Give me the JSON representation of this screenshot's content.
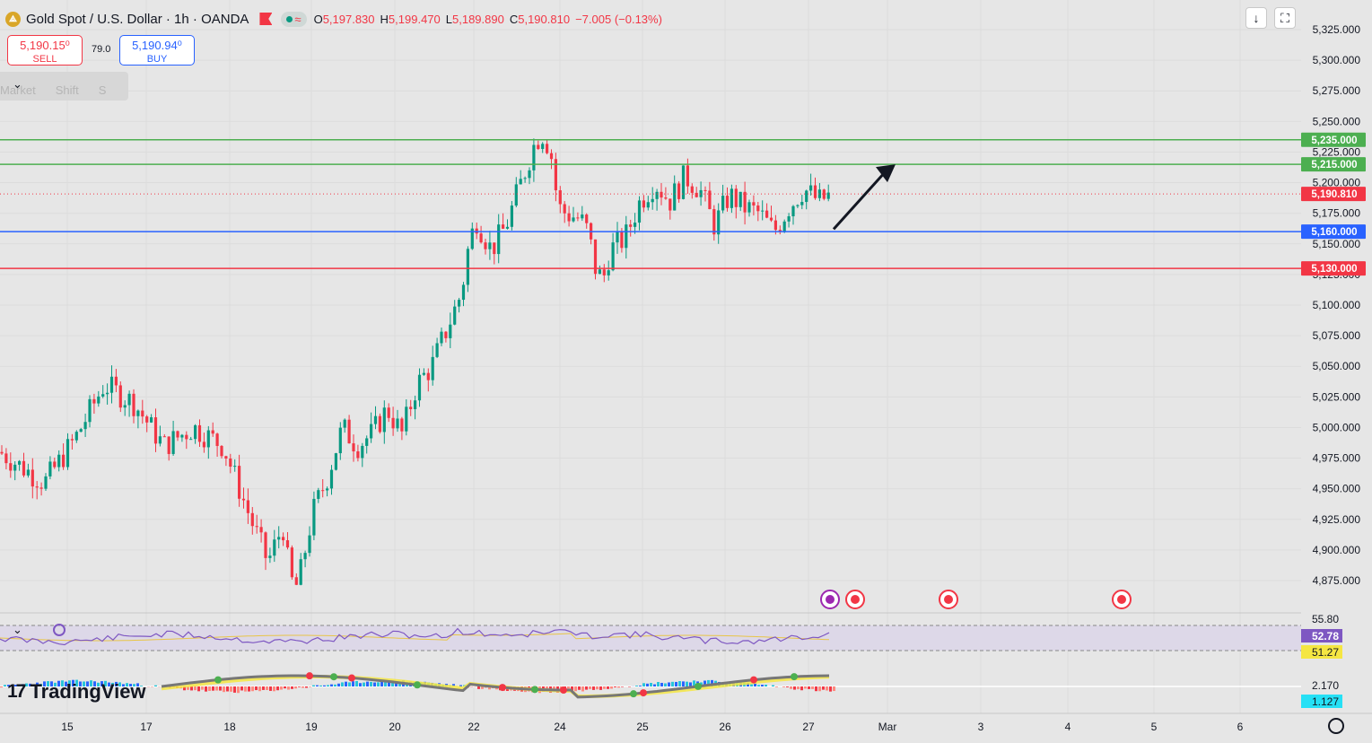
{
  "header": {
    "logo_glyph": "⟁",
    "symbol": "Gold Spot / U.S. Dollar · 1h · OANDA",
    "open_label": "O",
    "open": "5,197.830",
    "high_label": "H",
    "high": "5,199.470",
    "low_label": "L",
    "low": "5,189.890",
    "close_label": "C",
    "close": "5,190.810",
    "change": "−7.005 (−0.13%)",
    "indicator_glyph": "≈"
  },
  "trade": {
    "sell_price": "5,190.15⁰",
    "sell_label": "SELL",
    "spread": "79.0",
    "buy_price": "5,190.94⁰",
    "buy_label": "BUY"
  },
  "toolbar": {
    "download_glyph": "↓",
    "fullscreen_glyph": "⛶"
  },
  "overlay": {
    "items": [
      "Market",
      "Shift",
      "S"
    ],
    "chevron": "⌄"
  },
  "brand": {
    "mark": "17",
    "name": "TradingView"
  },
  "colors": {
    "up": "#089981",
    "down": "#f23645",
    "support": "#2962ff",
    "resistance": "#4caf50",
    "rsi": "#7e57c2",
    "rsi_ma": "#e8c547"
  },
  "chart_data": {
    "type": "candlestick",
    "timeframe": "1h",
    "ylim": [
      4850,
      5335
    ],
    "y_ticks": [
      "5,325.000",
      "5,300.000",
      "5,275.000",
      "5,250.000",
      "5,225.000",
      "5,200.000",
      "5,175.000",
      "5,150.000",
      "5,125.000",
      "5,100.000",
      "5,075.000",
      "5,050.000",
      "5,025.000",
      "5,000.000",
      "4,975.000",
      "4,950.000",
      "4,925.000",
      "4,900.000",
      "4,875.000"
    ],
    "x_ticks": [
      "15",
      "17",
      "18",
      "19",
      "20",
      "22",
      "24",
      "25",
      "26",
      "27",
      "Mar",
      "3",
      "4",
      "5",
      "6"
    ],
    "price_path": [
      [
        0,
        4980
      ],
      [
        3,
        4955
      ],
      [
        5,
        4990
      ],
      [
        7,
        5035
      ],
      [
        9,
        5020
      ],
      [
        11,
        4985
      ],
      [
        13,
        5000
      ],
      [
        15,
        4985
      ],
      [
        17,
        4920
      ],
      [
        18,
        4890
      ],
      [
        19,
        4920
      ],
      [
        19.5,
        4875
      ],
      [
        20,
        4870
      ],
      [
        20.5,
        4900
      ],
      [
        21,
        4930
      ],
      [
        22,
        4960
      ],
      [
        23,
        5000
      ],
      [
        24,
        4985
      ],
      [
        25,
        4995
      ],
      [
        26,
        5015
      ],
      [
        27,
        4995
      ],
      [
        28,
        5035
      ],
      [
        29,
        5050
      ],
      [
        30,
        5080
      ],
      [
        31,
        5110
      ],
      [
        31.5,
        5150
      ],
      [
        32,
        5170
      ],
      [
        33,
        5145
      ],
      [
        34,
        5165
      ],
      [
        35,
        5200
      ],
      [
        36,
        5235
      ],
      [
        36.5,
        5240
      ],
      [
        37,
        5225
      ],
      [
        37.5,
        5180
      ],
      [
        38,
        5175
      ],
      [
        39,
        5170
      ],
      [
        39.5,
        5160
      ],
      [
        40,
        5130
      ],
      [
        40.5,
        5120
      ],
      [
        41,
        5145
      ],
      [
        42,
        5155
      ],
      [
        43,
        5185
      ],
      [
        44,
        5200
      ],
      [
        45,
        5185
      ],
      [
        46,
        5205
      ],
      [
        47,
        5195
      ],
      [
        48,
        5165
      ],
      [
        49,
        5190
      ],
      [
        50,
        5180
      ],
      [
        51,
        5175
      ],
      [
        52,
        5160
      ],
      [
        53,
        5180
      ],
      [
        54,
        5195
      ],
      [
        55,
        5185
      ],
      [
        56,
        5191
      ]
    ],
    "last_price": "5,190.810",
    "levels": [
      {
        "value": 5235,
        "label": "5,235.000",
        "color": "#4caf50"
      },
      {
        "value": 5215,
        "label": "5,215.000",
        "color": "#4caf50"
      },
      {
        "value": 5160,
        "label": "5,160.000",
        "color": "#2962ff"
      },
      {
        "value": 5130,
        "label": "5,130.000",
        "color": "#f23645"
      }
    ],
    "annotation": {
      "type": "arrow",
      "from": [
        5162,
        "27"
      ],
      "to": [
        5215,
        "Mar"
      ]
    },
    "rsi": {
      "upper": "55.80",
      "value": "52.78",
      "lower": "51.27",
      "range": [
        51.27,
        55.8
      ],
      "value_num": 52.78
    },
    "macd": {
      "value": "2.170",
      "signal": "1.127"
    }
  }
}
